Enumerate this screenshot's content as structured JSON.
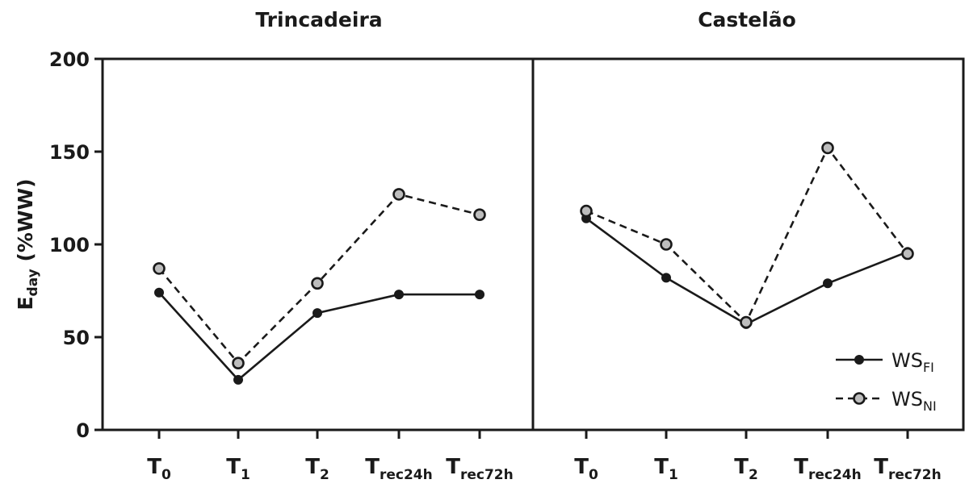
{
  "chart_data": {
    "type": "line",
    "ylabel": {
      "main": "E",
      "sub": "day",
      "rest": " (%WW)"
    },
    "ylim": [
      0,
      200
    ],
    "yticks": [
      "0",
      "50",
      "100",
      "150",
      "200"
    ],
    "categories": [
      {
        "main": "T",
        "sub": "0"
      },
      {
        "main": "T",
        "sub": "1"
      },
      {
        "main": "T",
        "sub": "2"
      },
      {
        "main": "T",
        "sub": "rec24h"
      },
      {
        "main": "T",
        "sub": "rec72h"
      }
    ],
    "panels": [
      {
        "title": "Trincadeira",
        "series": [
          {
            "name": "WS_FI",
            "values": [
              74,
              27,
              63,
              73,
              73
            ]
          },
          {
            "name": "WS_NI",
            "values": [
              87,
              36,
              79,
              127,
              116
            ]
          }
        ]
      },
      {
        "title": "Castelão",
        "series": [
          {
            "name": "WS_FI",
            "values": [
              114,
              82,
              57,
              79,
              96
            ]
          },
          {
            "name": "WS_NI",
            "values": [
              118,
              100,
              58,
              152,
              95
            ]
          }
        ]
      }
    ],
    "legend": {
      "position": "bottom-right",
      "entries": [
        {
          "main": "WS",
          "sub": "FI",
          "style": "solid-filled"
        },
        {
          "main": "WS",
          "sub": "NI",
          "style": "dashed-open"
        }
      ]
    },
    "grid": false
  }
}
